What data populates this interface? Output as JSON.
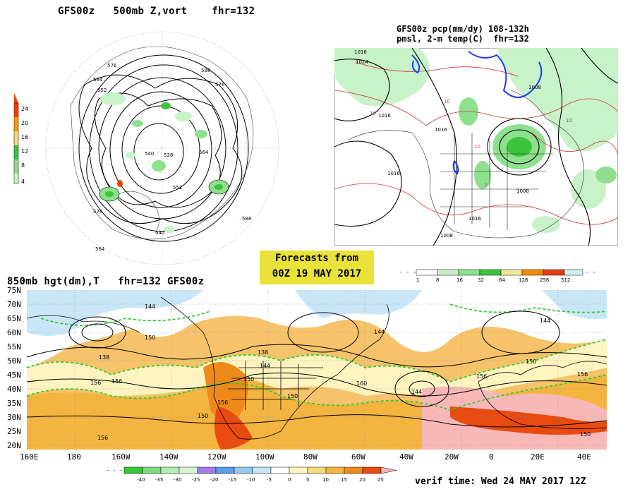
{
  "panel_500mb": {
    "title": "GFS00z   500mb Z,vort    fhr=132",
    "contour_labels": [
      "576",
      "564",
      "552",
      "540",
      "528",
      "588",
      "576",
      "564",
      "552",
      "540",
      "576",
      "564",
      "588"
    ],
    "colorbar": {
      "ticks": [
        "24",
        "20",
        "16",
        "12",
        "8",
        "4"
      ],
      "colors": [
        "#ff3b00",
        "#f5a000",
        "#f5d878",
        "#3cc43c",
        "#8ee08e",
        "#c8f2c8"
      ]
    }
  },
  "panel_precip": {
    "title_line1": "GFS00z pcp(mm/dy) 108-132h",
    "title_line2": "pmsl, 2-m temp(C)  fhr=132",
    "contour_labels": [
      "1016",
      "1024",
      "1016",
      "10",
      "10",
      "1016",
      "1016",
      "10",
      "10",
      "1008",
      "1008",
      "1016",
      "1008",
      "10"
    ],
    "colorbar": {
      "ticks": [
        "1",
        "8",
        "16",
        "32",
        "64",
        "128",
        "256",
        "512"
      ],
      "colors": [
        "#ffffff",
        "#c8f2c8",
        "#8ee08e",
        "#3cc43c",
        "#f5e7a0",
        "#f5c85a",
        "#f58a00",
        "#e83a10",
        "#cff2f2"
      ]
    }
  },
  "forecast_box": {
    "line1": "Forecasts from",
    "line2": "00Z 19 MAY 2017"
  },
  "panel_850mb": {
    "title": "850mb hgt(dm),T   fhr=132 GFS00z",
    "y_labels": [
      "75N",
      "70N",
      "65N",
      "60N",
      "55N",
      "50N",
      "45N",
      "40N",
      "35N",
      "30N",
      "25N",
      "20N"
    ],
    "x_labels": [
      "160E",
      "180",
      "160W",
      "140W",
      "120W",
      "100W",
      "80W",
      "60W",
      "40W",
      "20W",
      "0",
      "20E",
      "40E"
    ],
    "contour_labels": [
      "144",
      "150",
      "138",
      "156",
      "156",
      "150",
      "138",
      "144",
      "156",
      "150",
      "160",
      "144",
      "156",
      "150",
      "144",
      "156",
      "150",
      "144",
      "150",
      "156"
    ],
    "colorbar": {
      "ticks": [
        "-40",
        "-35",
        "-30",
        "-25",
        "-20",
        "-15",
        "-10",
        "-5",
        "0",
        "5",
        "10",
        "15",
        "20",
        "25"
      ],
      "colors": [
        "#34c834",
        "#7ed87e",
        "#b4ecb4",
        "#d8f4d8",
        "#a87ce8",
        "#5aa0e8",
        "#96c8f0",
        "#c8e6f8",
        "#ffffff",
        "#fff4c0",
        "#f8dc7c",
        "#f4b440",
        "#ee8a1a",
        "#e84a10",
        "#f8b8b8"
      ]
    }
  },
  "verif_time": "verif time: Wed 24 MAY 2017 12Z"
}
